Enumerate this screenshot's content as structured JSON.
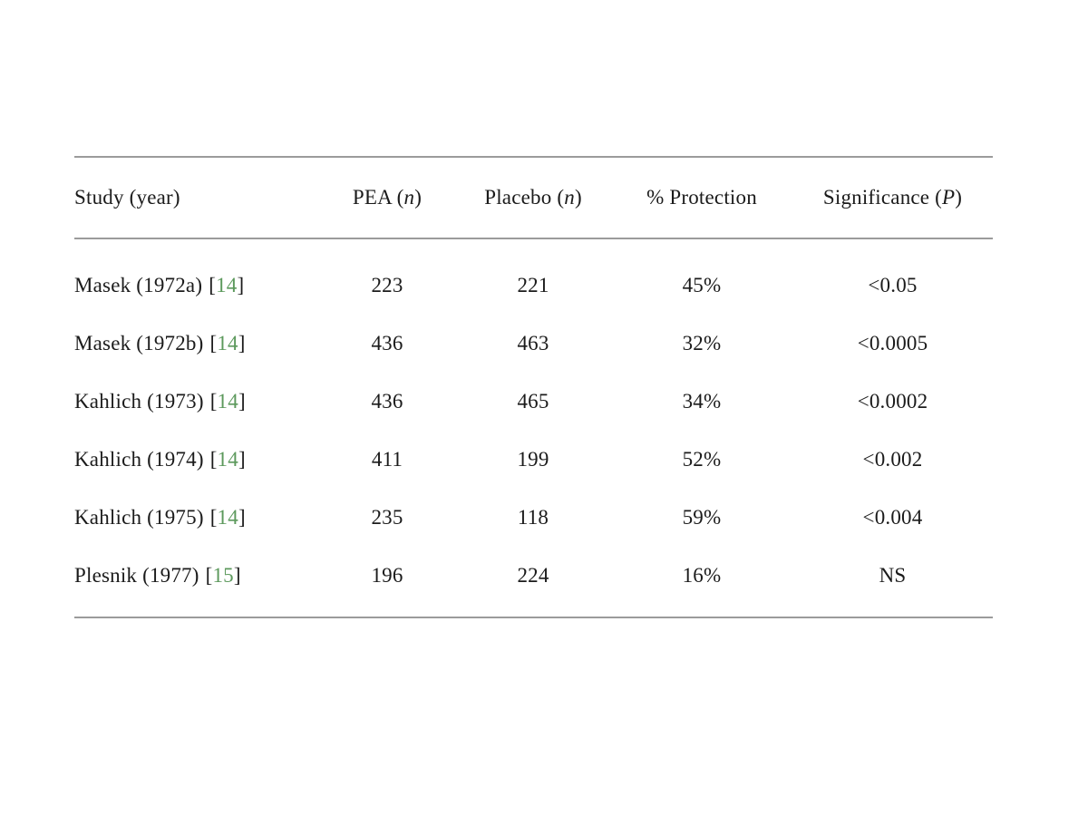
{
  "colors": {
    "text": "#1b1b1b",
    "rule": "#9b9b9b",
    "citation_link": "#5c995c",
    "background": "#ffffff"
  },
  "table": {
    "bracket_open": "[",
    "bracket_close": "]",
    "headers": [
      {
        "pre": "Study (year)",
        "italic": "",
        "post": ""
      },
      {
        "pre": "PEA (",
        "italic": "n",
        "post": ")"
      },
      {
        "pre": "Placebo (",
        "italic": "n",
        "post": ")"
      },
      {
        "pre": "% Protection",
        "italic": "",
        "post": ""
      },
      {
        "pre": "Significance (",
        "italic": "P",
        "post": ")"
      }
    ],
    "rows": [
      {
        "study": "Masek (1972a)",
        "ref": "14",
        "pea": "223",
        "placebo": "221",
        "protection": "45%",
        "significance": "<0.05"
      },
      {
        "study": "Masek (1972b)",
        "ref": "14",
        "pea": "436",
        "placebo": "463",
        "protection": "32%",
        "significance": "<0.0005"
      },
      {
        "study": "Kahlich (1973)",
        "ref": "14",
        "pea": "436",
        "placebo": "465",
        "protection": "34%",
        "significance": "<0.0002"
      },
      {
        "study": "Kahlich (1974)",
        "ref": "14",
        "pea": "411",
        "placebo": "199",
        "protection": "52%",
        "significance": "<0.002"
      },
      {
        "study": "Kahlich (1975)",
        "ref": "14",
        "pea": "235",
        "placebo": "118",
        "protection": "59%",
        "significance": "<0.004"
      },
      {
        "study": "Plesnik (1977)",
        "ref": "15",
        "pea": "196",
        "placebo": "224",
        "protection": "16%",
        "significance": "NS"
      }
    ]
  }
}
